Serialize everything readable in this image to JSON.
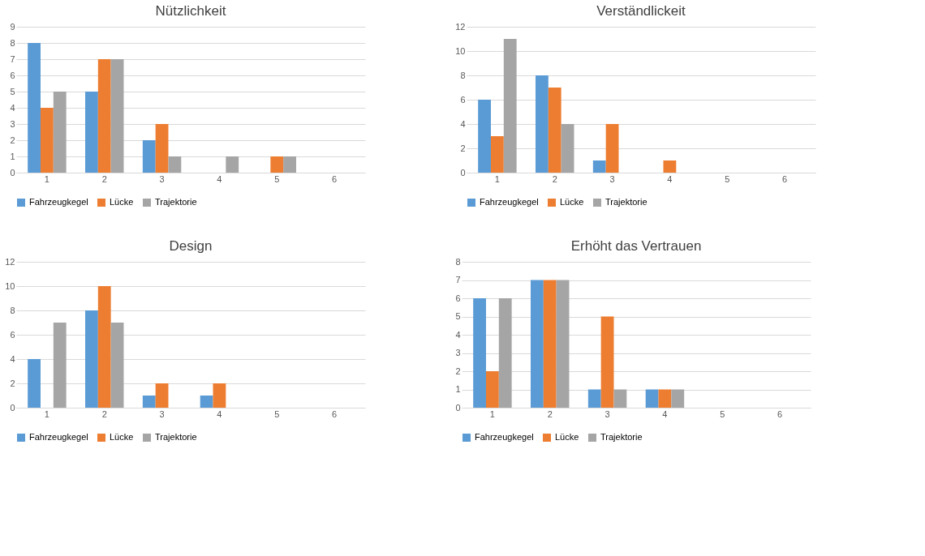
{
  "chart_data": [
    {
      "type": "bar",
      "title": "Nützlichkeit",
      "categories": [
        "1",
        "2",
        "3",
        "4",
        "5",
        "6"
      ],
      "ylim": [
        0,
        9
      ],
      "yticks": [
        0,
        1,
        2,
        3,
        4,
        5,
        6,
        7,
        8,
        9
      ],
      "grid": "y",
      "legend": "bottom",
      "series": [
        {
          "name": "Fahrzeugkegel",
          "color": "#5b9bd5",
          "values": [
            8,
            5,
            2,
            0,
            0,
            0
          ]
        },
        {
          "name": "Lücke",
          "color": "#ed7d31",
          "values": [
            4,
            7,
            3,
            0,
            1,
            0
          ]
        },
        {
          "name": "Trajektorie",
          "color": "#a5a5a5",
          "values": [
            5,
            7,
            1,
            1,
            1,
            0
          ]
        }
      ]
    },
    {
      "type": "bar",
      "title": "Verständlickeit",
      "categories": [
        "1",
        "2",
        "3",
        "4",
        "5",
        "6"
      ],
      "ylim": [
        0,
        12
      ],
      "yticks": [
        0,
        2,
        4,
        6,
        8,
        10,
        12
      ],
      "grid": "y",
      "legend": "bottom",
      "series": [
        {
          "name": "Fahrzeugkegel",
          "color": "#5b9bd5",
          "values": [
            6,
            8,
            1,
            0,
            0,
            0
          ]
        },
        {
          "name": "Lücke",
          "color": "#ed7d31",
          "values": [
            3,
            7,
            4,
            1,
            0,
            0
          ]
        },
        {
          "name": "Trajektorie",
          "color": "#a5a5a5",
          "values": [
            11,
            4,
            0,
            0,
            0,
            0
          ]
        }
      ]
    },
    {
      "type": "bar",
      "title": "Design",
      "categories": [
        "1",
        "2",
        "3",
        "4",
        "5",
        "6"
      ],
      "ylim": [
        0,
        12
      ],
      "yticks": [
        0,
        2,
        4,
        6,
        8,
        10,
        12
      ],
      "grid": "y",
      "legend": "bottom",
      "series": [
        {
          "name": "Fahrzeugkegel",
          "color": "#5b9bd5",
          "values": [
            4,
            8,
            1,
            1,
            0,
            0
          ]
        },
        {
          "name": "Lücke",
          "color": "#ed7d31",
          "values": [
            0,
            10,
            2,
            2,
            0,
            0
          ]
        },
        {
          "name": "Trajektorie",
          "color": "#a5a5a5",
          "values": [
            7,
            7,
            0,
            0,
            0,
            0
          ]
        }
      ]
    },
    {
      "type": "bar",
      "title": "Erhöht das Vertrauen",
      "categories": [
        "1",
        "2",
        "3",
        "4",
        "5",
        "6"
      ],
      "ylim": [
        0,
        8
      ],
      "yticks": [
        0,
        1,
        2,
        3,
        4,
        5,
        6,
        7,
        8
      ],
      "grid": "y",
      "legend": "bottom",
      "series": [
        {
          "name": "Fahrzeugkegel",
          "color": "#5b9bd5",
          "values": [
            6,
            7,
            1,
            1,
            0,
            0
          ]
        },
        {
          "name": "Lücke",
          "color": "#ed7d31",
          "values": [
            2,
            7,
            5,
            1,
            0,
            0
          ]
        },
        {
          "name": "Trajektorie",
          "color": "#a5a5a5",
          "values": [
            6,
            7,
            1,
            1,
            0,
            0
          ]
        }
      ]
    }
  ]
}
